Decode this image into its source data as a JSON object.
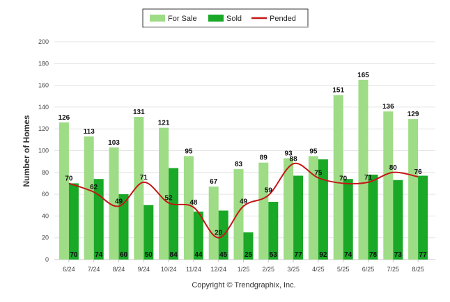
{
  "chart_data": {
    "type": "bar",
    "categories": [
      "6/24",
      "7/24",
      "8/24",
      "9/24",
      "10/24",
      "11/24",
      "12/24",
      "1/25",
      "2/25",
      "3/25",
      "4/25",
      "5/25",
      "6/25",
      "7/25",
      "8/25"
    ],
    "series": [
      {
        "name": "For Sale",
        "type": "bar",
        "color": "#9edc86",
        "values": [
          126,
          113,
          103,
          131,
          121,
          95,
          67,
          83,
          89,
          93,
          95,
          151,
          165,
          136,
          129
        ]
      },
      {
        "name": "Sold",
        "type": "bar",
        "color": "#1aa827",
        "values": [
          70,
          74,
          60,
          50,
          84,
          44,
          45,
          25,
          53,
          77,
          92,
          74,
          78,
          73,
          77
        ]
      },
      {
        "name": "Pended",
        "type": "line",
        "color": "#c41717",
        "values": [
          70,
          62,
          49,
          71,
          52,
          48,
          20,
          49,
          59,
          88,
          75,
          70,
          71,
          80,
          76
        ]
      }
    ],
    "ylabel": "Number of Homes",
    "ylim": [
      0,
      200
    ],
    "yticks": [
      0,
      20,
      40,
      60,
      80,
      100,
      120,
      140,
      160,
      180,
      200
    ],
    "grid": true,
    "legend": "top-center"
  },
  "footer": {
    "copyright": "Copyright © Trendgraphix, Inc."
  }
}
